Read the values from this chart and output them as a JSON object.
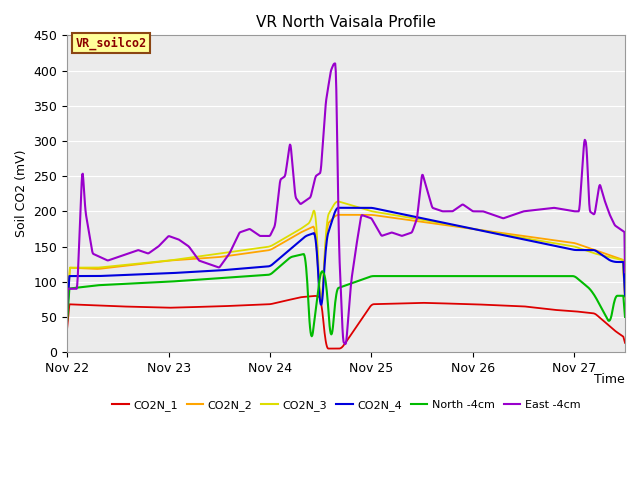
{
  "title": "VR North Vaisala Profile",
  "ylabel": "Soil CO2 (mV)",
  "xlabel": "Time",
  "ylim": [
    0,
    450
  ],
  "yticks": [
    0,
    50,
    100,
    150,
    200,
    250,
    300,
    350,
    400,
    450
  ],
  "xtick_labels": [
    "Nov 22",
    "Nov 23",
    "Nov 24",
    "Nov 25",
    "Nov 26",
    "Nov 27"
  ],
  "background_color": "#ffffff",
  "plot_bg_color": "#ebebeb",
  "grid_color": "#ffffff",
  "annotation_text": "VR_soilco2",
  "annotation_color": "#8b0000",
  "annotation_bg": "#ffff99",
  "annotation_border": "#8b4513",
  "series": {
    "CO2N_1": {
      "color": "#dd0000",
      "lw": 1.3
    },
    "CO2N_2": {
      "color": "#ffa500",
      "lw": 1.3
    },
    "CO2N_3": {
      "color": "#dddd00",
      "lw": 1.3
    },
    "CO2N_4": {
      "color": "#0000dd",
      "lw": 1.5
    },
    "North -4cm": {
      "color": "#00bb00",
      "lw": 1.5
    },
    "East -4cm": {
      "color": "#9900cc",
      "lw": 1.5
    }
  },
  "title_fontsize": 11,
  "axis_label_fontsize": 9,
  "tick_fontsize": 9
}
